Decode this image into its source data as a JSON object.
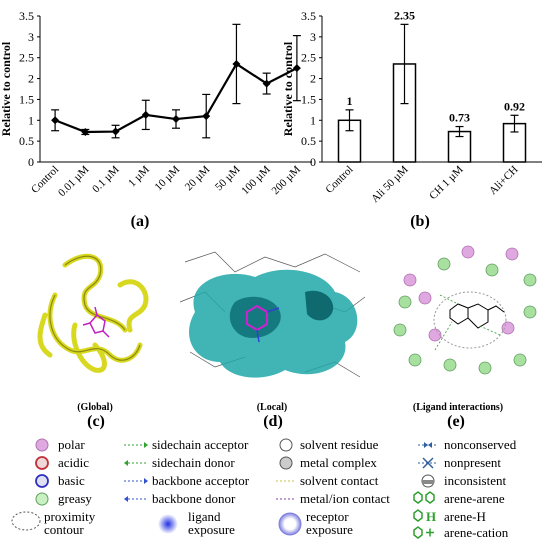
{
  "chart_data": [
    {
      "type": "line",
      "panel": "(a)",
      "ylabel": "Relative to control",
      "ylim": [
        0,
        3.5
      ],
      "yticks": [
        "0",
        "0.5",
        "1",
        "1.5",
        "2",
        "2.5",
        "3",
        "3.5"
      ],
      "categories": [
        "Control",
        "0.01 µM",
        "0.1 µM",
        "1 µM",
        "10 µM",
        "20 µM",
        "50 µM",
        "100 µM",
        "200 µM"
      ],
      "values": [
        1.0,
        0.72,
        0.73,
        1.13,
        1.03,
        1.1,
        2.35,
        1.88,
        2.25
      ],
      "errors": [
        0.25,
        0.06,
        0.15,
        0.35,
        0.22,
        0.52,
        0.95,
        0.25,
        0.78
      ]
    },
    {
      "type": "bar",
      "panel": "(b)",
      "ylabel": "Relative to control",
      "ylim": [
        0,
        3.5
      ],
      "yticks": [
        "0",
        "0.5",
        "1",
        "1.5",
        "2",
        "2.5",
        "3",
        "3.5"
      ],
      "categories": [
        "Control",
        "Ali 50 µM",
        "CH 1 µM",
        "Ali+CH"
      ],
      "values": [
        1.0,
        2.35,
        0.73,
        0.92
      ],
      "value_labels": [
        "1",
        "2.35",
        "0.73",
        "0.92"
      ],
      "errors": [
        0.25,
        0.95,
        0.12,
        0.2
      ]
    }
  ],
  "panels": {
    "a": "(a)",
    "b": "(b)",
    "c": "(c)",
    "d": "(d)",
    "e": "(e)"
  },
  "captions": {
    "c": "(Global)",
    "d": "(Local)",
    "e": "(Ligand interactions)"
  },
  "legend": {
    "col1": [
      "polar",
      "acidic",
      "basic",
      "greasy",
      "proximity contour"
    ],
    "col2": [
      "sidechain acceptor",
      "sidechain donor",
      "backbone acceptor",
      "backbone donor",
      "ligand exposure"
    ],
    "col3": [
      "solvent residue",
      "metal complex",
      "solvent contact",
      "metal/ion contact",
      "receptor exposure"
    ],
    "col4": [
      "nonconserved",
      "nonpresent",
      "inconsistent",
      "arene-arene",
      "arene-H",
      "arene-cation"
    ],
    "colors": {
      "polar": "#e0a8e0",
      "acidic": "#c0303a",
      "basic": "#3030c0",
      "greasy": "#a8e0a0",
      "sidechain": "#30a030",
      "backbone": "#3050d0",
      "solvent_contact": "#c0c040",
      "metal_contact": "#8040a0",
      "arene": "#30a030"
    }
  }
}
